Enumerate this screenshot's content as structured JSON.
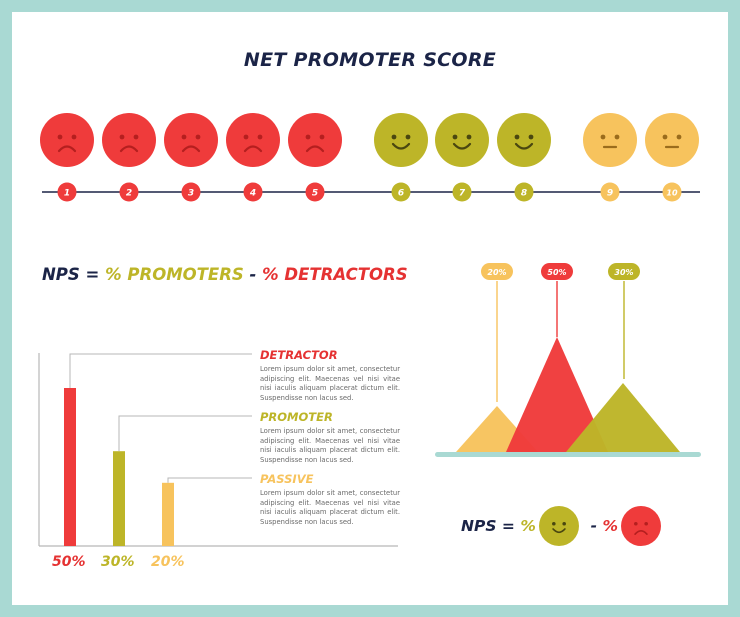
{
  "title": "NET PROMOTER SCORE",
  "colors": {
    "detractor": "#ef3b3b",
    "promoter": "#bdb528",
    "passive": "#f7c35d",
    "navy": "#1b2447",
    "border": "#a9d9d3"
  },
  "scale": [
    {
      "number": "1",
      "mood": "sad",
      "color": "detractor"
    },
    {
      "number": "2",
      "mood": "sad",
      "color": "detractor"
    },
    {
      "number": "3",
      "mood": "sad",
      "color": "detractor"
    },
    {
      "number": "4",
      "mood": "sad",
      "color": "detractor"
    },
    {
      "number": "5",
      "mood": "sad",
      "color": "detractor"
    },
    {
      "number": "6",
      "mood": "happy",
      "color": "promoter"
    },
    {
      "number": "7",
      "mood": "happy",
      "color": "promoter"
    },
    {
      "number": "8",
      "mood": "happy",
      "color": "promoter"
    },
    {
      "number": "9",
      "mood": "neutral",
      "color": "passive"
    },
    {
      "number": "10",
      "mood": "neutral",
      "color": "passive"
    }
  ],
  "formula": {
    "nps": "NPS",
    "equals": "=",
    "promoters": "% PROMOTERS",
    "minus": "-",
    "detractors": "% DETRACTORS"
  },
  "categories": [
    {
      "name": "DETRACTOR",
      "text": "Lorem ipsum dolor sit amet, consectetur adipiscing elit. Maecenas vel nisi vitae nisi iaculis aliquam placerat dictum elit. Suspendisse non lacus sed.",
      "percent": "50%",
      "value": 50,
      "color": "detractor"
    },
    {
      "name": "PROMOTER",
      "text": "Lorem ipsum dolor sit amet, consectetur adipiscing elit. Maecenas vel nisi vitae nisi iaculis aliquam placerat dictum elit. Suspendisse non lacus sed.",
      "percent": "30%",
      "value": 30,
      "color": "promoter"
    },
    {
      "name": "PASSIVE",
      "text": "Lorem ipsum dolor sit amet, consectetur adipiscing elit. Maecenas vel nisi vitae nisi iaculis aliquam placerat dictum elit. Suspendisse non lacus sed.",
      "percent": "20%",
      "value": 20,
      "color": "passive"
    }
  ],
  "triangles": [
    {
      "label": "20%",
      "value": 20,
      "color": "passive"
    },
    {
      "label": "50%",
      "value": 50,
      "color": "detractor"
    },
    {
      "label": "30%",
      "value": 30,
      "color": "promoter"
    }
  ],
  "nps_bottom": {
    "nps": "NPS",
    "equals": "=",
    "percent1": "%",
    "face1": "happy",
    "minus": "-",
    "percent2": "%",
    "face2": "sad"
  }
}
